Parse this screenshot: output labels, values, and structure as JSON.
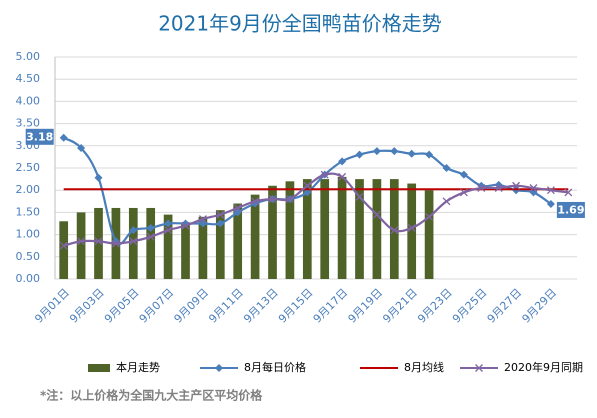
{
  "chart_data": {
    "type": "bar_line",
    "title": "2021年9月份全国鸭苗价格走势",
    "note": "*注：以上价格为全国九大主产区平均价格",
    "categories": [
      "9月01日",
      null,
      "9月03日",
      null,
      "9月05日",
      null,
      "9月07日",
      null,
      "9月09日",
      null,
      "9月11日",
      null,
      "9月13日",
      null,
      "9月15日",
      null,
      "9月17日",
      null,
      "9月19日",
      null,
      "9月21日",
      null,
      "9月23日",
      null,
      "9月25日",
      null,
      "9月27日",
      null,
      "9月29日",
      null
    ],
    "ylim": [
      0,
      5
    ],
    "yticks": [
      {
        "value": 0,
        "label": "0.00"
      },
      {
        "value": 0.5,
        "label": "0.50"
      },
      {
        "value": 1,
        "label": "1.00"
      },
      {
        "value": 1.5,
        "label": "1.50"
      },
      {
        "value": 2,
        "label": "2.00"
      },
      {
        "value": 2.5,
        "label": "2.50"
      },
      {
        "value": 3,
        "label": "3.00"
      },
      {
        "value": 3.5,
        "label": "3.50"
      },
      {
        "value": 4,
        "label": "4.00"
      },
      {
        "value": 4.5,
        "label": "4.50"
      },
      {
        "value": 5,
        "label": "5.00"
      }
    ],
    "grid": true,
    "legend": "bottom",
    "series": [
      {
        "name": "本月走势",
        "kind": "bar",
        "color": "#4f6228",
        "values": [
          1.3,
          1.5,
          1.6,
          1.6,
          1.6,
          1.6,
          1.45,
          1.25,
          1.4,
          1.55,
          1.7,
          1.9,
          2.1,
          2.2,
          2.25,
          2.25,
          2.3,
          2.25,
          2.25,
          2.25,
          2.15,
          2.0,
          null,
          null,
          null,
          null,
          null,
          null,
          null,
          null
        ]
      },
      {
        "name": "8月每日价格",
        "kind": "line",
        "marker": "diamond",
        "color": "#4a7ebb",
        "values": [
          3.18,
          2.95,
          2.28,
          0.85,
          1.1,
          1.15,
          1.25,
          1.25,
          1.25,
          1.25,
          1.5,
          1.7,
          1.8,
          1.8,
          1.95,
          2.35,
          2.65,
          2.8,
          2.88,
          2.88,
          2.82,
          2.8,
          2.5,
          2.35,
          2.1,
          2.12,
          2.0,
          1.95,
          1.69,
          null
        ],
        "value_labels": [
          "3.18",
          null,
          null,
          null,
          null,
          null,
          null,
          null,
          null,
          null,
          null,
          null,
          null,
          null,
          null,
          null,
          null,
          null,
          null,
          null,
          null,
          null,
          null,
          null,
          null,
          null,
          null,
          null,
          "1.69",
          null
        ]
      },
      {
        "name": "8月均线",
        "kind": "line",
        "marker": "none",
        "color": "#c00000",
        "values": [
          2.02,
          2.02,
          2.02,
          2.02,
          2.02,
          2.02,
          2.02,
          2.02,
          2.02,
          2.02,
          2.02,
          2.02,
          2.02,
          2.02,
          2.02,
          2.02,
          2.02,
          2.02,
          2.02,
          2.02,
          2.02,
          2.02,
          2.02,
          2.02,
          2.02,
          2.02,
          2.02,
          2.02,
          2.02,
          2.02
        ]
      },
      {
        "name": "2020年9月同期",
        "kind": "line",
        "marker": "x",
        "color": "#8064a2",
        "values": [
          0.75,
          0.85,
          0.85,
          0.8,
          0.85,
          0.95,
          1.1,
          1.2,
          1.35,
          1.45,
          1.6,
          1.75,
          1.8,
          1.8,
          2.1,
          2.35,
          2.3,
          1.85,
          1.45,
          1.1,
          1.15,
          1.4,
          1.75,
          1.95,
          2.05,
          2.05,
          2.1,
          2.05,
          2.0,
          1.95
        ]
      }
    ]
  }
}
